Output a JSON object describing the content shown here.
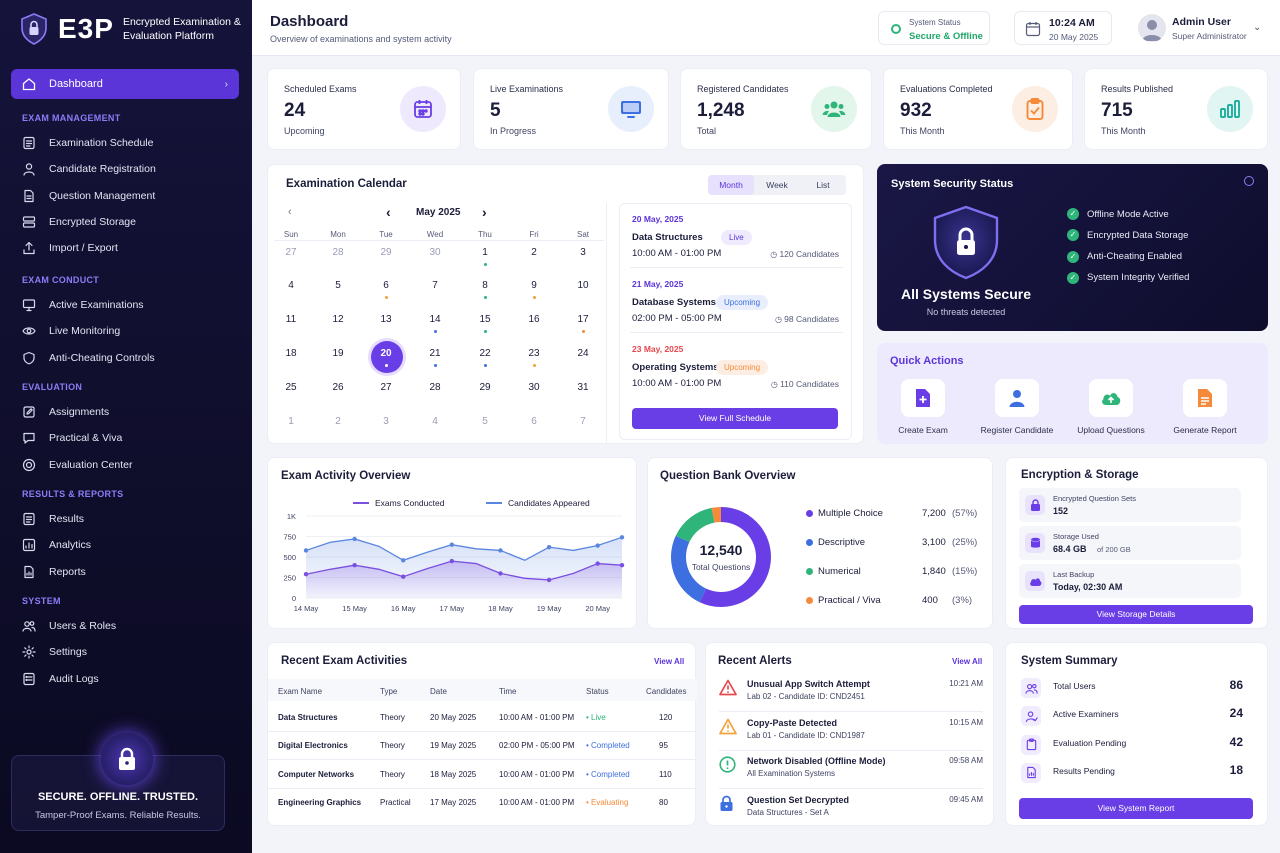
{
  "colors": {
    "accent": "#6a3ee6",
    "success": "#2fb57a",
    "warning": "#f58a3a",
    "danger": "#e5484d",
    "sidebar": "#15133a"
  },
  "brand": {
    "name": "E3P",
    "tagline": "Encrypted Examination & Evaluation Platform"
  },
  "sidebar": {
    "dashboard": "Dashboard",
    "sections": [
      {
        "title": "EXAM MANAGEMENT",
        "items": [
          {
            "label": "Examination Schedule",
            "icon": "list-icon"
          },
          {
            "label": "Candidate Registration",
            "icon": "user-icon"
          },
          {
            "label": "Question Management",
            "icon": "document-icon"
          },
          {
            "label": "Encrypted Storage",
            "icon": "storage-icon"
          },
          {
            "label": "Import / Export",
            "icon": "upload-icon"
          }
        ]
      },
      {
        "title": "EXAM CONDUCT",
        "items": [
          {
            "label": "Active Examinations",
            "icon": "monitor-icon"
          },
          {
            "label": "Live Monitoring",
            "icon": "eye-icon"
          },
          {
            "label": "Anti-Cheating Controls",
            "icon": "shield-icon"
          }
        ]
      },
      {
        "title": "EVALUATION",
        "items": [
          {
            "label": "Assignments",
            "icon": "edit-icon"
          },
          {
            "label": "Practical & Viva",
            "icon": "chat-icon"
          },
          {
            "label": "Evaluation Center",
            "icon": "target-icon"
          }
        ]
      },
      {
        "title": "RESULTS & REPORTS",
        "items": [
          {
            "label": "Results",
            "icon": "list-icon"
          },
          {
            "label": "Analytics",
            "icon": "chart-icon"
          },
          {
            "label": "Reports",
            "icon": "report-icon"
          }
        ]
      },
      {
        "title": "SYSTEM",
        "items": [
          {
            "label": "Users & Roles",
            "icon": "users-icon"
          },
          {
            "label": "Settings",
            "icon": "gear-icon"
          },
          {
            "label": "Audit Logs",
            "icon": "log-icon"
          }
        ]
      }
    ],
    "footer": {
      "title": "SECURE. OFFLINE. TRUSTED.",
      "subtitle": "Tamper-Proof Exams. Reliable Results."
    }
  },
  "header": {
    "title": "Dashboard",
    "subtitle": "Overview of examinations and system activity",
    "status_label": "System Status",
    "status_value": "Secure & Offline",
    "time": "10:24 AM",
    "date": "20 May 2025",
    "user_name": "Admin User",
    "user_role": "Super Administrator"
  },
  "stats": [
    {
      "label": "Scheduled Exams",
      "value": "24",
      "sub": "Upcoming",
      "icon": "calendar-icon",
      "color": "#6a3ee6",
      "bg": "#efe9fd"
    },
    {
      "label": "Live Examinations",
      "value": "5",
      "sub": "In Progress",
      "icon": "monitor-icon",
      "color": "#3e6fe0",
      "bg": "#e7eefc"
    },
    {
      "label": "Registered Candidates",
      "value": "1,248",
      "sub": "Total",
      "icon": "users-icon",
      "color": "#2fb57a",
      "bg": "#e3f6ec"
    },
    {
      "label": "Evaluations Completed",
      "value": "932",
      "sub": "This Month",
      "icon": "clipboard-check-icon",
      "color": "#f58a3a",
      "bg": "#fdeee3"
    },
    {
      "label": "Results Published",
      "value": "715",
      "sub": "This Month",
      "icon": "bar-chart-icon",
      "color": "#1fae9e",
      "bg": "#e1f5f2"
    }
  ],
  "calendar": {
    "title": "Examination Calendar",
    "views": [
      "Month",
      "Week",
      "List"
    ],
    "month": "May 2025",
    "dows": [
      "Sun",
      "Mon",
      "Tue",
      "Wed",
      "Thu",
      "Fri",
      "Sat"
    ],
    "weeks": [
      [
        "27",
        "28",
        "29",
        "30",
        "1",
        "2",
        "3"
      ],
      [
        "4",
        "5",
        "6",
        "7",
        "8",
        "9",
        "10"
      ],
      [
        "11",
        "12",
        "13",
        "14",
        "15",
        "16",
        "17"
      ],
      [
        "18",
        "19",
        "20",
        "21",
        "22",
        "23",
        "24"
      ],
      [
        "25",
        "26",
        "27",
        "28",
        "29",
        "30",
        "31"
      ],
      [
        "1",
        "2",
        "3",
        "4",
        "5",
        "6",
        "7"
      ]
    ],
    "events": [
      {
        "date": "20 May, 2025",
        "name": "Data Structures",
        "time": "10:00 AM - 01:00 PM",
        "status": "Live",
        "candidates": "120 Candidates"
      },
      {
        "date": "21 May, 2025",
        "name": "Database Systems",
        "time": "02:00 PM - 05:00 PM",
        "status": "Upcoming",
        "candidates": "98 Candidates"
      },
      {
        "date": "23 May, 2025",
        "name": "Operating Systems",
        "time": "10:00 AM - 01:00 PM",
        "status": "Upcoming",
        "candidates": "110 Candidates"
      }
    ],
    "button": "View Full Schedule"
  },
  "security": {
    "title": "System Security Status",
    "headline": "All Systems Secure",
    "note": "No threats detected",
    "checks": [
      "Offline Mode Active",
      "Encrypted Data Storage",
      "Anti-Cheating Enabled",
      "System Integrity Verified"
    ]
  },
  "quick_actions": {
    "title": "Quick Actions",
    "items": [
      {
        "label": "Create Exam",
        "icon": "file-plus-icon"
      },
      {
        "label": "Register Candidate",
        "icon": "user-icon"
      },
      {
        "label": "Upload Questions",
        "icon": "cloud-upload-icon"
      },
      {
        "label": "Generate Report",
        "icon": "report-icon"
      }
    ]
  },
  "chart_data": [
    {
      "type": "area",
      "title": "Exam Activity Overview",
      "categories": [
        "14 May",
        "15 May",
        "16 May",
        "17 May",
        "18 May",
        "19 May",
        "20 May"
      ],
      "x": [
        "14 May",
        "14.5",
        "15 May",
        "15.5",
        "16 May",
        "16.5",
        "17 May",
        "17.5",
        "18 May",
        "18.5",
        "19 May",
        "19.5",
        "20 May",
        "20.5"
      ],
      "series": [
        {
          "name": "Exams Conducted",
          "color": "#7b4fe0",
          "values": [
            290,
            350,
            400,
            350,
            260,
            360,
            450,
            420,
            300,
            240,
            220,
            300,
            420,
            400
          ]
        },
        {
          "name": "Candidates Appeared",
          "color": "#5b86e0",
          "values": [
            580,
            680,
            720,
            630,
            460,
            560,
            650,
            600,
            580,
            460,
            620,
            580,
            640,
            740
          ]
        }
      ],
      "yticks": [
        "0",
        "250",
        "500",
        "750",
        "1K"
      ],
      "ylim": [
        0,
        1000
      ],
      "legend": "top"
    },
    {
      "type": "pie",
      "title": "Question Bank Overview",
      "center_value": "12,540",
      "center_label": "Total Questions",
      "slices": [
        {
          "name": "Multiple Choice",
          "value": "7,200",
          "pct": "(57%)",
          "share": 57,
          "color": "#6a3ee6"
        },
        {
          "name": "Descriptive",
          "value": "3,100",
          "pct": "(25%)",
          "share": 25,
          "color": "#3e6fe0"
        },
        {
          "name": "Numerical",
          "value": "1,840",
          "pct": "(15%)",
          "share": 15,
          "color": "#2fb57a"
        },
        {
          "name": "Practical / Viva",
          "value": "400",
          "pct": "(3%)",
          "share": 3,
          "color": "#f58a3a"
        }
      ]
    }
  ],
  "storage": {
    "title": "Encryption & Storage",
    "rows": [
      {
        "label": "Encrypted Question Sets",
        "value": "152",
        "extra": "",
        "icon": "lock-icon"
      },
      {
        "label": "Storage Used",
        "value": "68.4 GB",
        "extra": "of 200 GB",
        "icon": "database-icon"
      },
      {
        "label": "Last Backup",
        "value": "Today, 02:30 AM",
        "extra": "",
        "icon": "cloud-upload-icon"
      }
    ],
    "button": "View Storage Details"
  },
  "activities": {
    "title": "Recent Exam Activities",
    "view_all": "View All",
    "headers": [
      "Exam Name",
      "Type",
      "Date",
      "Time",
      "Status",
      "Candidates"
    ],
    "rows": [
      {
        "name": "Data Structures",
        "type": "Theory",
        "date": "20 May 2025",
        "time": "10:00 AM - 01:00 PM",
        "status": "Live",
        "candidates": "120",
        "color": "#2fb57a"
      },
      {
        "name": "Digital Electronics",
        "type": "Theory",
        "date": "19 May 2025",
        "time": "02:00 PM - 05:00 PM",
        "status": "Completed",
        "candidates": "95",
        "color": "#3e6fe0"
      },
      {
        "name": "Computer Networks",
        "type": "Theory",
        "date": "18 May 2025",
        "time": "10:00 AM - 01:00 PM",
        "status": "Completed",
        "candidates": "110",
        "color": "#3e6fe0"
      },
      {
        "name": "Engineering Graphics",
        "type": "Practical",
        "date": "17 May 2025",
        "time": "10:00 AM - 01:00 PM",
        "status": "Evaluating",
        "candidates": "80",
        "color": "#f58a3a"
      }
    ]
  },
  "alerts": {
    "title": "Recent Alerts",
    "view_all": "View All",
    "items": [
      {
        "title": "Unusual App Switch Attempt",
        "sub": "Lab 02 - Candidate ID: CND2451",
        "time": "10:21 AM",
        "icon": "warning-red-icon"
      },
      {
        "title": "Copy-Paste Detected",
        "sub": "Lab 01 - Candidate ID: CND1987",
        "time": "10:15 AM",
        "icon": "warning-amber-icon"
      },
      {
        "title": "Network Disabled (Offline Mode)",
        "sub": "All Examination Systems",
        "time": "09:58 AM",
        "icon": "info-green-icon"
      },
      {
        "title": "Question Set Decrypted",
        "sub": "Data Structures - Set A",
        "time": "09:45 AM",
        "icon": "lock-icon"
      }
    ]
  },
  "summary": {
    "title": "System Summary",
    "rows": [
      {
        "label": "Total Users",
        "value": "86",
        "icon": "users-icon"
      },
      {
        "label": "Active Examiners",
        "value": "24",
        "icon": "user-check-icon"
      },
      {
        "label": "Evaluation Pending",
        "value": "42",
        "icon": "clipboard-icon"
      },
      {
        "label": "Results Pending",
        "value": "18",
        "icon": "report-icon"
      }
    ],
    "button": "View System Report"
  }
}
